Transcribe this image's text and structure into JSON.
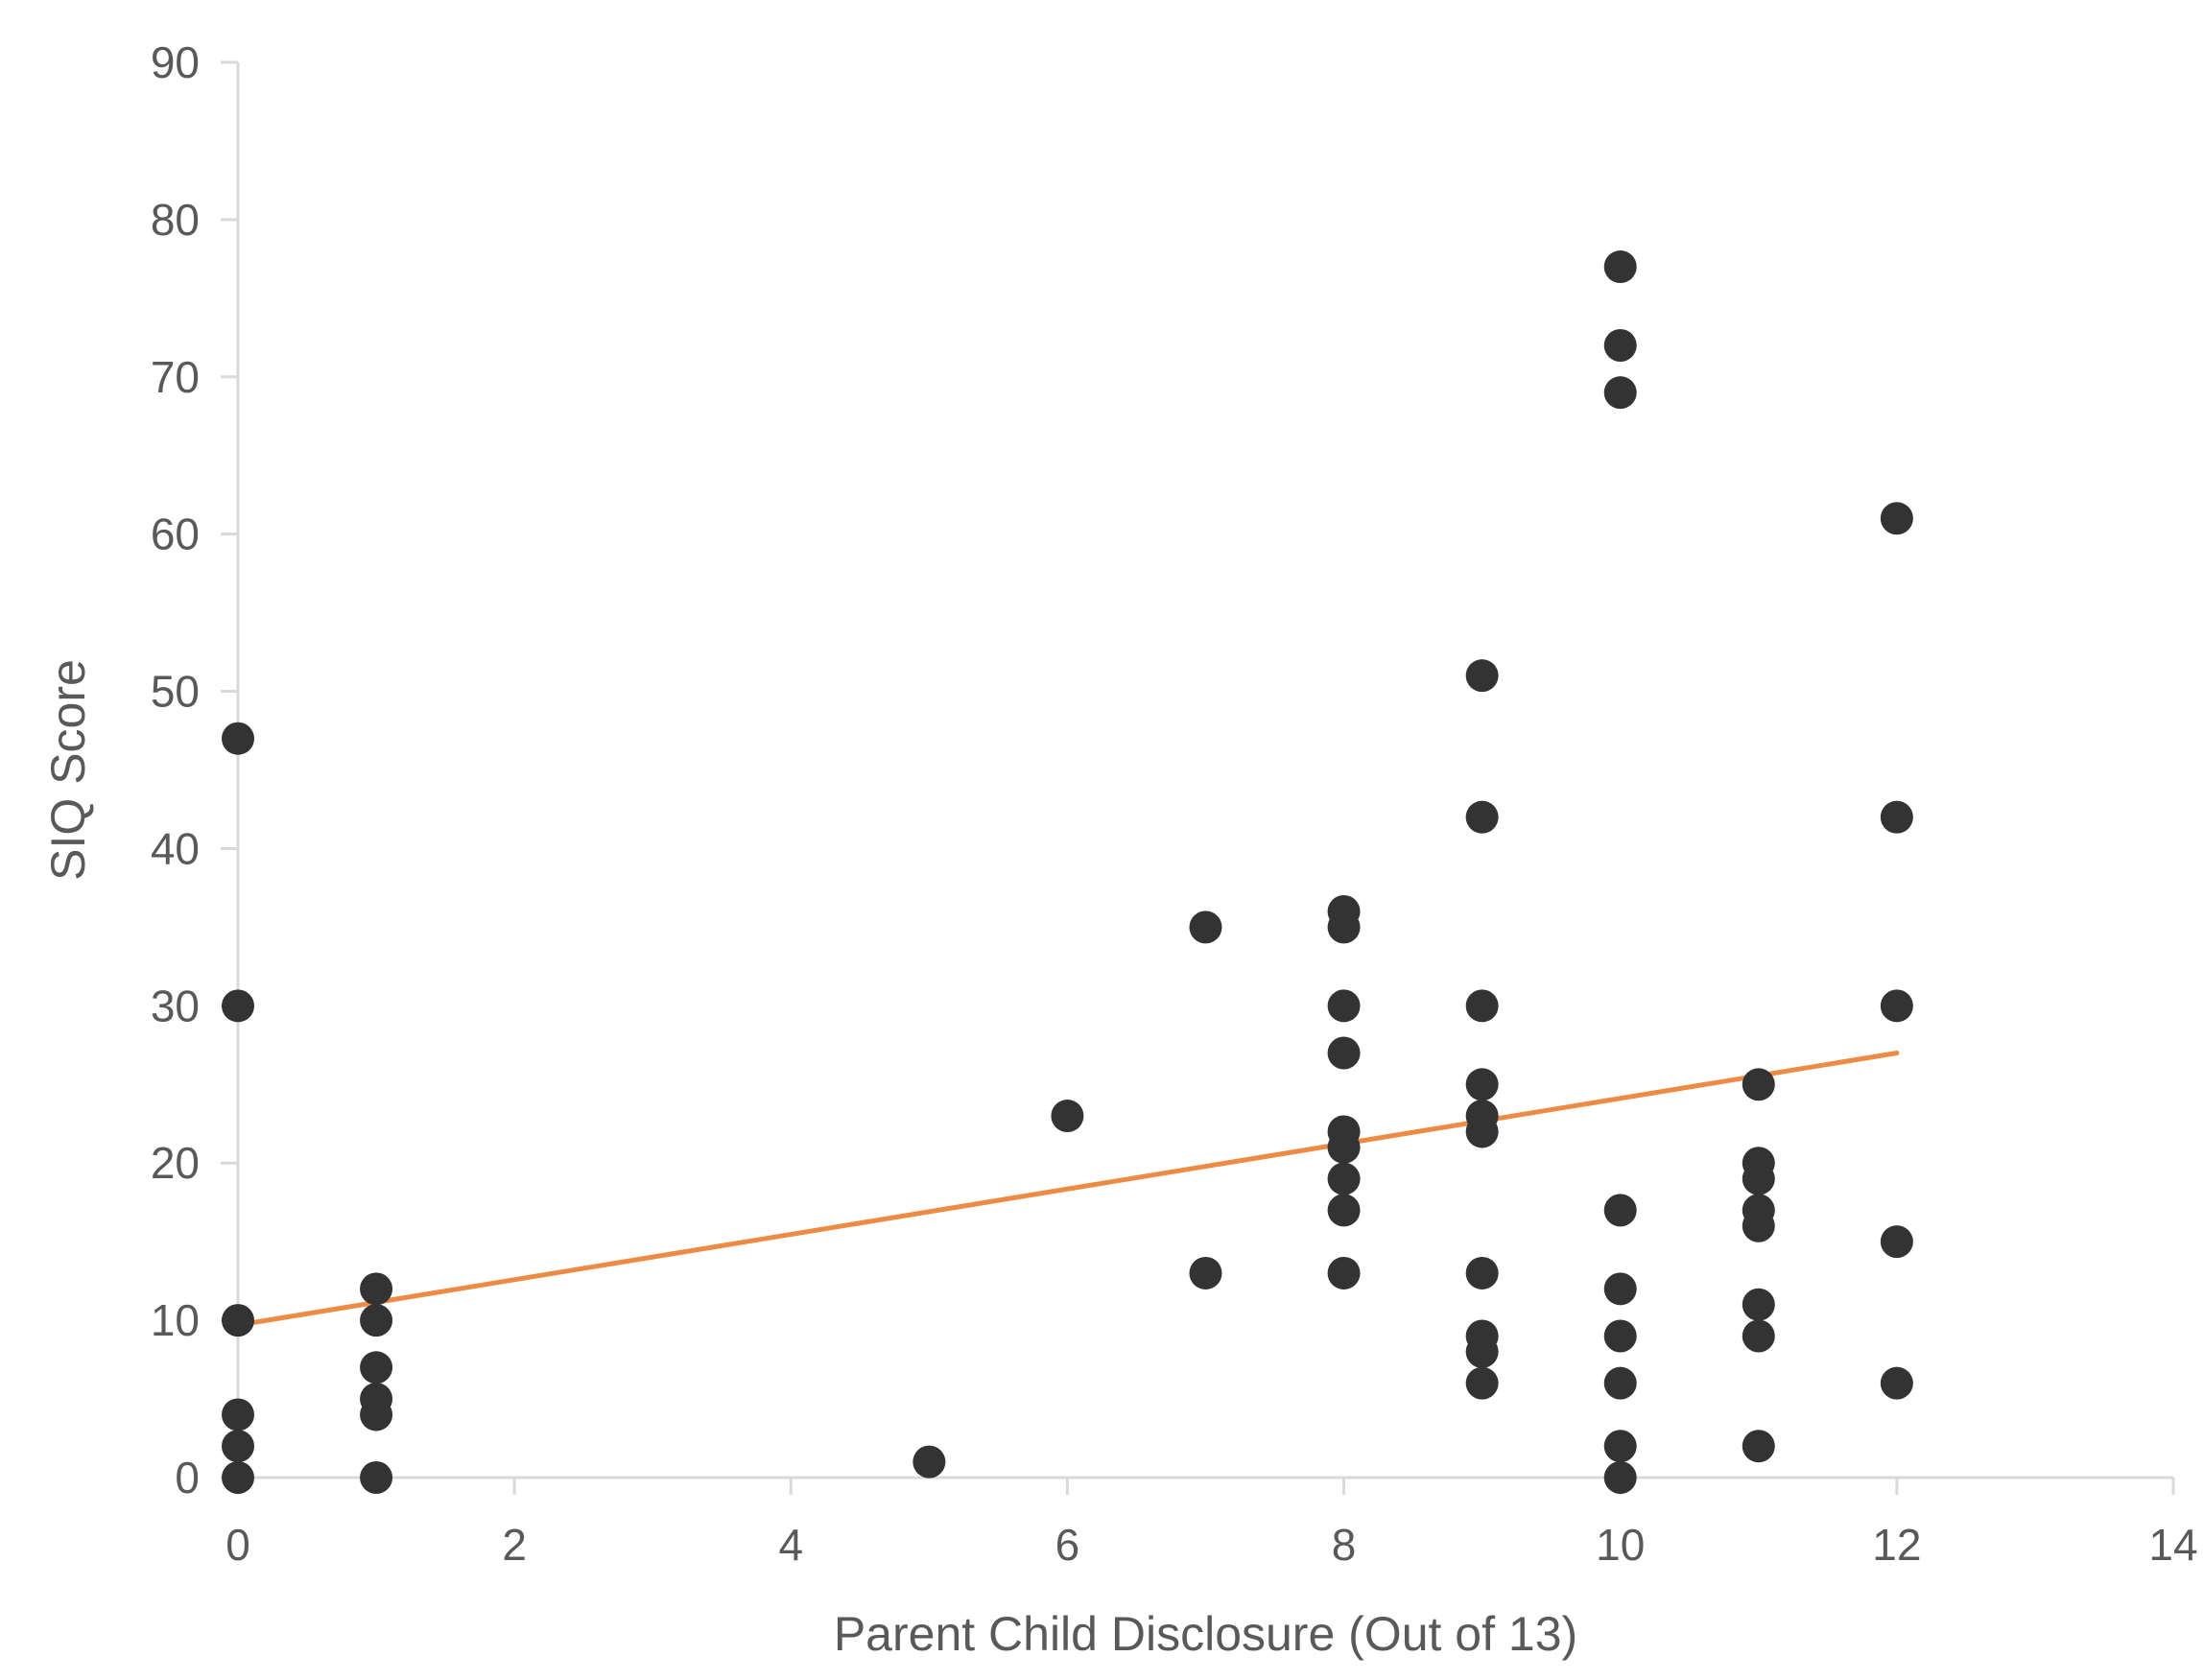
{
  "chart_data": {
    "type": "scatter",
    "title": "",
    "xlabel": "Parent Child Disclosure (Out of 13)",
    "ylabel": "SIQ Score",
    "xlim": [
      0,
      14
    ],
    "ylim": [
      0,
      90
    ],
    "xticks": [
      0,
      2,
      4,
      6,
      8,
      10,
      12,
      14
    ],
    "yticks": [
      0,
      10,
      20,
      30,
      40,
      50,
      60,
      70,
      80,
      90
    ],
    "grid": false,
    "legend": "none",
    "colors": {
      "points": "#333333",
      "trendline": "#ED8B45",
      "axis": "#D9D9D9",
      "text": "#595959"
    },
    "series": [
      {
        "points": [
          [
            0,
            47
          ],
          [
            0,
            30
          ],
          [
            0,
            10
          ],
          [
            0,
            4
          ],
          [
            0,
            2
          ],
          [
            0,
            0
          ],
          [
            1,
            12
          ],
          [
            1,
            10
          ],
          [
            1,
            7
          ],
          [
            1,
            5
          ],
          [
            1,
            4
          ],
          [
            1,
            0
          ],
          [
            5,
            1
          ],
          [
            6,
            23
          ],
          [
            7,
            35
          ],
          [
            7,
            13
          ],
          [
            8,
            36
          ],
          [
            8,
            35
          ],
          [
            8,
            30
          ],
          [
            8,
            27
          ],
          [
            8,
            22
          ],
          [
            8,
            21
          ],
          [
            8,
            19
          ],
          [
            8,
            17
          ],
          [
            8,
            13
          ],
          [
            9,
            51
          ],
          [
            9,
            42
          ],
          [
            9,
            30
          ],
          [
            9,
            25
          ],
          [
            9,
            23
          ],
          [
            9,
            22
          ],
          [
            9,
            13
          ],
          [
            9,
            9
          ],
          [
            9,
            8
          ],
          [
            9,
            6
          ],
          [
            10,
            77
          ],
          [
            10,
            72
          ],
          [
            10,
            69
          ],
          [
            10,
            17
          ],
          [
            10,
            12
          ],
          [
            10,
            9
          ],
          [
            10,
            6
          ],
          [
            10,
            2
          ],
          [
            10,
            0
          ],
          [
            11,
            25
          ],
          [
            11,
            20
          ],
          [
            11,
            19
          ],
          [
            11,
            17
          ],
          [
            11,
            16
          ],
          [
            11,
            11
          ],
          [
            11,
            9
          ],
          [
            11,
            2
          ],
          [
            12,
            61
          ],
          [
            12,
            42
          ],
          [
            12,
            30
          ],
          [
            12,
            15
          ],
          [
            12,
            6
          ]
        ]
      }
    ],
    "trendline": {
      "type": "linear",
      "x": [
        0,
        12
      ],
      "y": [
        9.7,
        27.0
      ]
    }
  }
}
